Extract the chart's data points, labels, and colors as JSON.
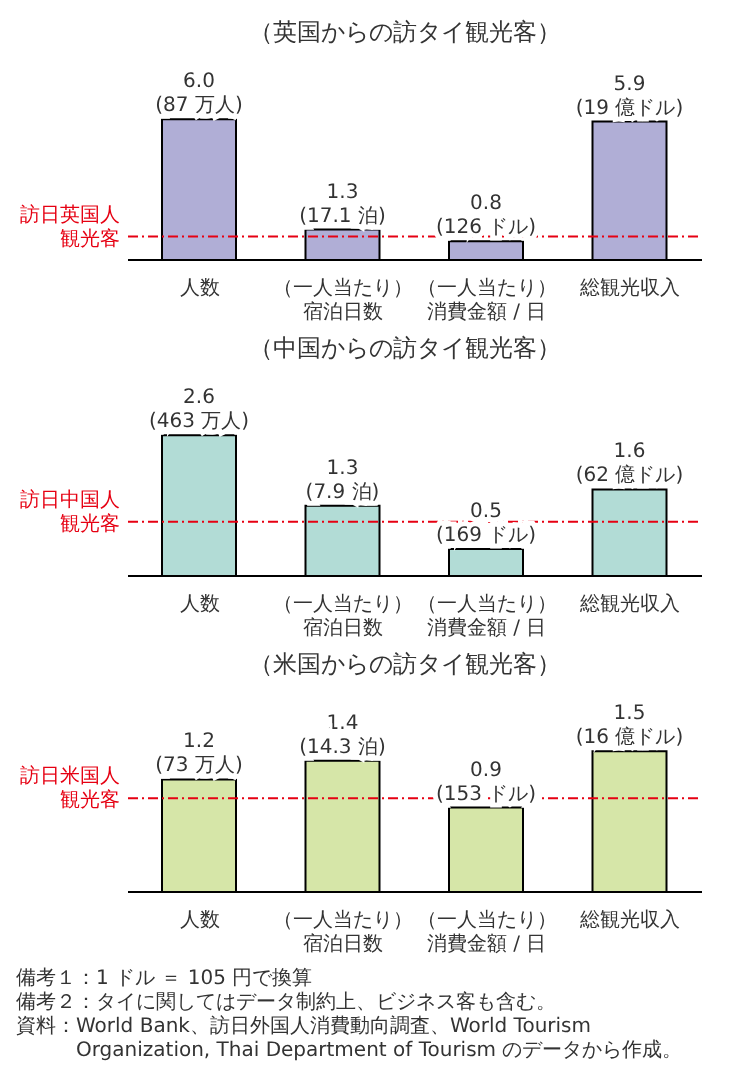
{
  "chart_data": [
    {
      "type": "bar",
      "title": "（英国からの訪タイ観光客）",
      "categories": [
        "人数",
        "（一人当たり）宿泊日数",
        "（一人当たり）消費金額 / 日",
        "総観光収入"
      ],
      "values": [
        6.0,
        1.3,
        0.8,
        5.9
      ],
      "color": "#b0aed6",
      "value_labels": [
        "6.0\n(87 万人)",
        "1.3\n(17.1 泊)",
        "0.8\n(126 ドル)",
        "5.9\n(19 億ドル)"
      ],
      "tick_labels": "x",
      "ref_lines": [
        {
          "axis": "y",
          "value": 1,
          "label": "訪日英国人観光客",
          "color": "#e60012",
          "line_style": "dashed"
        }
      ]
    },
    {
      "type": "bar",
      "title": "（中国からの訪タイ観光客）",
      "categories": [
        "人数",
        "（一人当たり）宿泊日数",
        "（一人当たり）消費金額 / 日",
        "総観光収入"
      ],
      "values": [
        2.6,
        1.3,
        0.5,
        1.6
      ],
      "color": "#b2dcd6",
      "value_labels": [
        "2.6\n(463 万人)",
        "1.3\n(7.9 泊)",
        "0.5\n(169 ドル)",
        "1.6\n(62 億ドル)"
      ],
      "tick_labels": "x",
      "ref_lines": [
        {
          "axis": "y",
          "value": 1,
          "label": "訪日中国人観光客",
          "color": "#e60012",
          "line_style": "dashed"
        }
      ]
    },
    {
      "type": "bar",
      "title": "（米国からの訪タイ観光客）",
      "categories": [
        "人数",
        "（一人当たり）宿泊日数",
        "（一人当たり）消費金額 / 日",
        "総観光収入"
      ],
      "values": [
        1.2,
        1.4,
        0.9,
        1.5
      ],
      "color": "#d6e6a8",
      "value_labels": [
        "1.2\n(73 万人)",
        "1.4\n(14.3 泊)",
        "0.9\n(153 ドル)",
        "1.5\n(16 億ドル)"
      ],
      "tick_labels": "x",
      "ref_lines": [
        {
          "axis": "y",
          "value": 1,
          "label": "訪日米国人観光客",
          "color": "#e60012",
          "line_style": "dashed"
        }
      ],
      "annotations": [
        "備考１：1 ドル ＝ 105 円で換算",
        "備考２：タイに関してはデータ制約上、ビジネス客も含む。",
        "資料：World Bank、訪日外国人消費動向調査、World Tourism Organization, Thai Department of Tourism のデータから作成。"
      ]
    }
  ]
}
